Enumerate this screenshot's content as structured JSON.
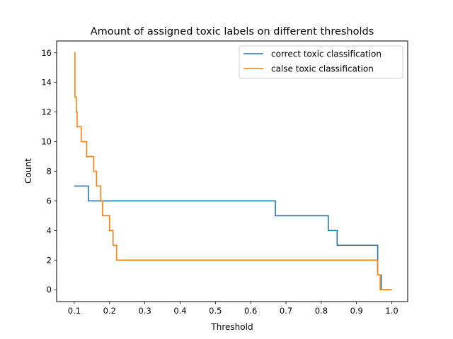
{
  "chart_data": {
    "type": "line",
    "title": "Amount of assigned toxic labels on different thresholds",
    "xlabel": "Threshold",
    "ylabel": "Count",
    "xlim": [
      0.05,
      1.045
    ],
    "ylim": [
      -0.8,
      16.8
    ],
    "xticks": [
      0.1,
      0.2,
      0.3,
      0.4,
      0.5,
      0.6,
      0.7,
      0.8,
      0.9,
      1.0
    ],
    "xtick_labels": [
      "0.1",
      "0.2",
      "0.3",
      "0.4",
      "0.5",
      "0.6",
      "0.7",
      "0.8",
      "0.9",
      "1.0"
    ],
    "yticks": [
      0,
      2,
      4,
      6,
      8,
      10,
      12,
      14,
      16
    ],
    "ytick_labels": [
      "0",
      "2",
      "4",
      "6",
      "8",
      "10",
      "12",
      "14",
      "16"
    ],
    "grid": false,
    "legend_position": "top-right",
    "step": "post",
    "series": [
      {
        "name": "correct toxic classification",
        "color": "#1f77b4",
        "x": [
          0.1,
          0.14,
          0.67,
          0.82,
          0.845,
          0.96,
          0.97,
          0.977,
          1.0
        ],
        "y": [
          7,
          6,
          5,
          4,
          3,
          1,
          0,
          0,
          0
        ]
      },
      {
        "name": "calse toxic classification",
        "color": "#ff7f0e",
        "x": [
          0.1,
          0.102,
          0.106,
          0.108,
          0.12,
          0.125,
          0.135,
          0.155,
          0.163,
          0.175,
          0.18,
          0.2,
          0.21,
          0.22,
          0.96,
          0.967,
          1.0
        ],
        "y": [
          16,
          13,
          12,
          11,
          10,
          10,
          9,
          8,
          7,
          6,
          5,
          4,
          3,
          2,
          1,
          0,
          0
        ]
      }
    ]
  }
}
